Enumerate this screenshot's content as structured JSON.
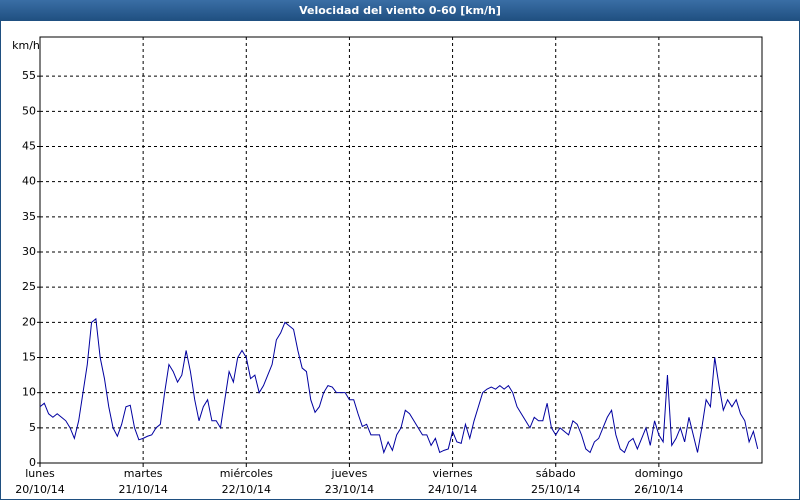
{
  "chart_data": {
    "type": "line",
    "title": "Velocidad del viento 0-60 [km/h]",
    "ylabel": "km/h",
    "x": [
      0,
      1,
      2,
      3,
      4,
      5,
      6,
      7,
      8,
      9,
      10,
      11,
      12,
      13,
      14,
      15,
      16,
      17,
      18,
      19,
      20,
      21,
      22,
      23,
      24,
      25,
      26,
      27,
      28,
      29,
      30,
      31,
      32,
      33,
      34,
      35,
      36,
      37,
      38,
      39,
      40,
      41,
      42,
      43,
      44,
      45,
      46,
      47,
      48,
      49,
      50,
      51,
      52,
      53,
      54,
      55,
      56,
      57,
      58,
      59,
      60,
      61,
      62,
      63,
      64,
      65,
      66,
      67,
      68,
      69,
      70,
      71,
      72,
      73,
      74,
      75,
      76,
      77,
      78,
      79,
      80,
      81,
      82,
      83,
      84,
      85,
      86,
      87,
      88,
      89,
      90,
      91,
      92,
      93,
      94,
      95,
      96,
      97,
      98,
      99,
      100,
      101,
      102,
      103,
      104,
      105,
      106,
      107,
      108,
      109,
      110,
      111,
      112,
      113,
      114,
      115,
      116,
      117,
      118,
      119,
      120,
      121,
      122,
      123,
      124,
      125,
      126,
      127,
      128,
      129,
      130,
      131,
      132,
      133,
      134,
      135,
      136,
      137,
      138,
      139,
      140,
      141,
      142,
      143,
      144,
      145,
      146,
      147,
      148,
      149,
      150,
      151,
      152,
      153,
      154,
      155,
      156,
      157,
      158,
      159,
      160,
      161,
      162,
      163,
      164,
      165,
      166,
      167
    ],
    "values": [
      8,
      8.5,
      7,
      6.5,
      7,
      6.5,
      6,
      5,
      3.5,
      6,
      10,
      14,
      20,
      20.5,
      15,
      12,
      8,
      5,
      3.8,
      5.5,
      8,
      8.2,
      5,
      3.3,
      3.5,
      3.8,
      4,
      5,
      5.5,
      10,
      14,
      13,
      11.5,
      12.5,
      16,
      13,
      9,
      6,
      8,
      9,
      6,
      6,
      5,
      9,
      13,
      11.5,
      15,
      16,
      15,
      12,
      12.5,
      10,
      11,
      12.5,
      14,
      17.5,
      18.5,
      20,
      19.5,
      19,
      16,
      13.5,
      13,
      9,
      7.2,
      8,
      10,
      11,
      10.8,
      10,
      10,
      10,
      9,
      9,
      7,
      5.2,
      5.5,
      4,
      4,
      4,
      1.5,
      3,
      1.8,
      4,
      5,
      7.5,
      7,
      6,
      5,
      4,
      4,
      2.5,
      3.5,
      1.5,
      1.8,
      2,
      4.5,
      3,
      2.8,
      5.5,
      3.5,
      6,
      8,
      10,
      10.5,
      10.8,
      10.5,
      11,
      10.5,
      11,
      10,
      8,
      7,
      6,
      5,
      6.5,
      6,
      6,
      8.5,
      5,
      4,
      5,
      4.5,
      4,
      6,
      5.5,
      4,
      2,
      1.5,
      3,
      3.5,
      5,
      6.5,
      7.5,
      4,
      2,
      1.5,
      3,
      3.5,
      2,
      3.5,
      5,
      2.5,
      6,
      4,
      3,
      12.5,
      2.5,
      3.5,
      5,
      3,
      6.5,
      4,
      1.5,
      5,
      9,
      8,
      15,
      11,
      7.5,
      9,
      8,
      9,
      7,
      6,
      3,
      4.5,
      2
    ],
    "color": "#0000a0",
    "xlim": [
      0,
      168
    ],
    "xticks": [
      {
        "value": 0,
        "label": [
          "lunes",
          "20/10/14"
        ]
      },
      {
        "value": 24,
        "label": [
          "martes",
          "21/10/14"
        ]
      },
      {
        "value": 48,
        "label": [
          "miércoles",
          "22/10/14"
        ]
      },
      {
        "value": 72,
        "label": [
          "jueves",
          "23/10/14"
        ]
      },
      {
        "value": 96,
        "label": [
          "viernes",
          "24/10/14"
        ]
      },
      {
        "value": 120,
        "label": [
          "sábado",
          "25/10/14"
        ]
      },
      {
        "value": 144,
        "label": [
          "domingo",
          "26/10/14"
        ]
      }
    ],
    "ylim": [
      0,
      60
    ],
    "yticks": [
      0,
      5,
      10,
      15,
      20,
      25,
      30,
      35,
      40,
      45,
      50,
      55
    ],
    "grid": true
  }
}
